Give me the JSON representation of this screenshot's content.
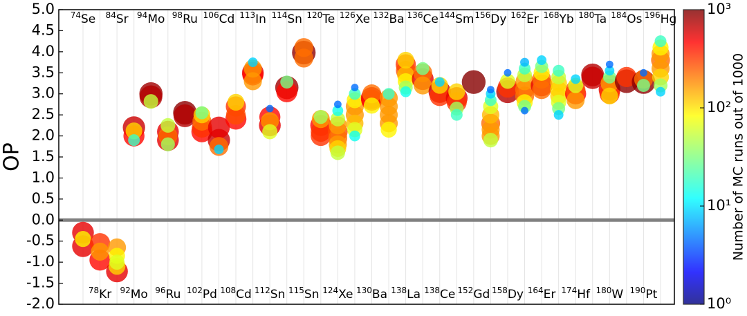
{
  "chart_data": {
    "type": "bubble",
    "ylabel": "OP",
    "ylim": [
      -2.0,
      5.0
    ],
    "yticks": [
      {
        "value": -2,
        "label": "-2.0"
      },
      -1.5,
      {
        "value": -1,
        "label": "-1.0"
      },
      -0.5,
      {
        "value": 0,
        "label": "0.0"
      },
      0.5,
      {
        "value": 1,
        "label": "1.0"
      },
      1.5,
      {
        "value": 2,
        "label": "2.0"
      },
      2.5,
      {
        "value": 3,
        "label": "3.0"
      },
      3.5,
      {
        "value": 4,
        "label": "4.0"
      },
      4.5,
      {
        "value": 5,
        "label": "5.0"
      }
    ],
    "zero_line": true,
    "colorbar": {
      "label": "Number of MC runs out of 1000",
      "log": true,
      "clim": [
        1,
        1000
      ],
      "colormap": "jet",
      "ticks": [
        {
          "value": 1,
          "label": "10⁰"
        },
        {
          "value": 10,
          "label": "10¹"
        },
        {
          "value": 100,
          "label": "10²"
        },
        {
          "value": 1000,
          "label": "10³"
        }
      ]
    },
    "isotopes": [
      {
        "mass": "74",
        "element": "Se",
        "points": [
          [
            -0.3,
            500
          ],
          [
            -0.62,
            500
          ],
          [
            -0.45,
            80
          ]
        ]
      },
      {
        "mass": "78",
        "element": "Kr",
        "points": [
          [
            -0.95,
            400
          ],
          [
            -0.55,
            300
          ],
          [
            -0.75,
            150
          ]
        ]
      },
      {
        "mass": "84",
        "element": "Sr",
        "points": [
          [
            -1.22,
            500
          ],
          [
            -0.65,
            150
          ],
          [
            -1.1,
            100
          ],
          [
            -0.85,
            80
          ],
          [
            -1.0,
            60
          ]
        ]
      },
      {
        "mass": "92",
        "element": "Mo",
        "points": [
          [
            2.2,
            600
          ],
          [
            2.0,
            400
          ],
          [
            2.12,
            100
          ],
          [
            1.9,
            20
          ]
        ]
      },
      {
        "mass": "94",
        "element": "Mo",
        "points": [
          [
            3.0,
            800
          ],
          [
            2.93,
            700
          ],
          [
            2.82,
            50
          ]
        ]
      },
      {
        "mass": "96",
        "element": "Ru",
        "points": [
          [
            2.1,
            500
          ],
          [
            1.9,
            500
          ],
          [
            2.0,
            200
          ],
          [
            2.25,
            50
          ],
          [
            1.8,
            40
          ]
        ]
      },
      {
        "mass": "98",
        "element": "Ru",
        "points": [
          [
            2.55,
            900
          ],
          [
            2.48,
            700
          ]
        ]
      },
      {
        "mass": "102",
        "element": "Pd",
        "points": [
          [
            2.1,
            400
          ],
          [
            2.2,
            300
          ],
          [
            2.35,
            200
          ],
          [
            2.5,
            100
          ],
          [
            2.55,
            30
          ]
        ]
      },
      {
        "mass": "106",
        "element": "Cd",
        "points": [
          [
            1.9,
            600
          ],
          [
            2.2,
            500
          ],
          [
            1.75,
            200
          ],
          [
            1.68,
            10
          ]
        ]
      },
      {
        "mass": "108",
        "element": "Cd",
        "points": [
          [
            2.4,
            400
          ],
          [
            2.7,
            300
          ],
          [
            2.5,
            250
          ],
          [
            2.8,
            100
          ]
        ]
      },
      {
        "mass": "113",
        "element": "In",
        "points": [
          [
            3.5,
            500
          ],
          [
            3.45,
            400
          ],
          [
            3.6,
            150
          ],
          [
            3.3,
            150
          ],
          [
            3.75,
            10
          ]
        ]
      },
      {
        "mass": "112",
        "element": "Sn",
        "points": [
          [
            2.25,
            500
          ],
          [
            2.45,
            400
          ],
          [
            2.35,
            150
          ],
          [
            2.1,
            60
          ],
          [
            2.65,
            5
          ]
        ]
      },
      {
        "mass": "114",
        "element": "Sn",
        "points": [
          [
            3.15,
            800
          ],
          [
            3.05,
            400
          ],
          [
            3.28,
            30
          ]
        ]
      },
      {
        "mass": "115",
        "element": "Sn",
        "points": [
          [
            3.98,
            900
          ],
          [
            4.1,
            200
          ],
          [
            3.85,
            200
          ]
        ]
      },
      {
        "mass": "120",
        "element": "Te",
        "points": [
          [
            2.25,
            400
          ],
          [
            2.1,
            300
          ],
          [
            2.0,
            300
          ],
          [
            2.4,
            150
          ],
          [
            2.45,
            40
          ]
        ]
      },
      {
        "mass": "124",
        "element": "Xe",
        "points": [
          [
            2.1,
            250
          ],
          [
            1.95,
            200
          ],
          [
            1.8,
            150
          ],
          [
            2.25,
            150
          ],
          [
            1.7,
            100
          ],
          [
            1.6,
            50
          ],
          [
            2.4,
            50
          ],
          [
            2.6,
            15
          ],
          [
            2.75,
            5
          ]
        ]
      },
      {
        "mass": "126",
        "element": "Xe",
        "points": [
          [
            2.7,
            150
          ],
          [
            2.5,
            150
          ],
          [
            2.3,
            120
          ],
          [
            2.85,
            80
          ],
          [
            2.15,
            60
          ],
          [
            3.0,
            20
          ],
          [
            2.0,
            15
          ],
          [
            3.15,
            5
          ]
        ]
      },
      {
        "mass": "130",
        "element": "Ba",
        "points": [
          [
            2.9,
            500
          ],
          [
            2.85,
            400
          ],
          [
            3.0,
            200
          ],
          [
            2.72,
            80
          ]
        ]
      },
      {
        "mass": "132",
        "element": "Ba",
        "points": [
          [
            2.9,
            150
          ],
          [
            2.7,
            150
          ],
          [
            2.5,
            150
          ],
          [
            2.3,
            150
          ],
          [
            2.15,
            80
          ],
          [
            3.0,
            20
          ]
        ]
      },
      {
        "mass": "138",
        "element": "La",
        "points": [
          [
            3.7,
            300
          ],
          [
            3.55,
            250
          ],
          [
            3.45,
            120
          ],
          [
            3.8,
            100
          ],
          [
            3.3,
            80
          ],
          [
            3.15,
            40
          ],
          [
            3.05,
            15
          ]
        ]
      },
      {
        "mass": "136",
        "element": "Ce",
        "points": [
          [
            3.35,
            500
          ],
          [
            3.5,
            200
          ],
          [
            3.2,
            150
          ],
          [
            3.6,
            30
          ]
        ]
      },
      {
        "mass": "138",
        "element": "Ce",
        "points": [
          [
            3.05,
            600
          ],
          [
            2.95,
            300
          ],
          [
            3.2,
            100
          ],
          [
            3.28,
            10
          ]
        ]
      },
      {
        "mass": "144",
        "element": "Sm",
        "points": [
          [
            2.9,
            500
          ],
          [
            2.8,
            300
          ],
          [
            3.05,
            100
          ],
          [
            2.65,
            40
          ],
          [
            2.5,
            20
          ]
        ]
      },
      {
        "mass": "152",
        "element": "Gd",
        "points": [
          [
            3.28,
            950
          ]
        ]
      },
      {
        "mass": "156",
        "element": "Dy",
        "points": [
          [
            2.3,
            200
          ],
          [
            2.15,
            150
          ],
          [
            2.0,
            150
          ],
          [
            2.5,
            120
          ],
          [
            2.7,
            60
          ],
          [
            1.9,
            50
          ],
          [
            2.85,
            20
          ],
          [
            3.0,
            10
          ],
          [
            3.1,
            5
          ]
        ]
      },
      {
        "mass": "158",
        "element": "Dy",
        "points": [
          [
            3.05,
            700
          ],
          [
            3.15,
            300
          ],
          [
            3.3,
            60
          ],
          [
            3.5,
            5
          ]
        ]
      },
      {
        "mass": "162",
        "element": "Er",
        "points": [
          [
            3.1,
            200
          ],
          [
            2.95,
            200
          ],
          [
            3.3,
            150
          ],
          [
            2.8,
            80
          ],
          [
            3.45,
            50
          ],
          [
            2.7,
            30
          ],
          [
            3.6,
            20
          ],
          [
            3.75,
            8
          ],
          [
            2.6,
            5
          ]
        ]
      },
      {
        "mass": "164",
        "element": "Er",
        "points": [
          [
            3.2,
            500
          ],
          [
            3.35,
            200
          ],
          [
            3.1,
            200
          ],
          [
            3.5,
            80
          ],
          [
            3.65,
            30
          ],
          [
            3.8,
            10
          ]
        ]
      },
      {
        "mass": "168",
        "element": "Yb",
        "points": [
          [
            3.1,
            100
          ],
          [
            2.95,
            100
          ],
          [
            3.25,
            100
          ],
          [
            2.8,
            60
          ],
          [
            3.4,
            50
          ],
          [
            2.65,
            30
          ],
          [
            3.55,
            20
          ],
          [
            2.5,
            10
          ]
        ]
      },
      {
        "mass": "174",
        "element": "Hf",
        "points": [
          [
            3.0,
            400
          ],
          [
            3.1,
            250
          ],
          [
            2.85,
            150
          ],
          [
            3.2,
            60
          ],
          [
            3.35,
            10
          ]
        ]
      },
      {
        "mass": "180",
        "element": "Ta",
        "points": [
          [
            3.45,
            700
          ],
          [
            3.38,
            600
          ]
        ]
      },
      {
        "mass": "180",
        "element": "W",
        "points": [
          [
            3.1,
            500
          ],
          [
            3.0,
            300
          ],
          [
            3.25,
            150
          ],
          [
            2.95,
            100
          ],
          [
            3.4,
            30
          ],
          [
            3.55,
            10
          ],
          [
            3.7,
            5
          ]
        ]
      },
      {
        "mass": "184",
        "element": "Os",
        "points": [
          [
            3.3,
            900
          ],
          [
            3.4,
            300
          ]
        ]
      },
      {
        "mass": "190",
        "element": "Pt",
        "points": [
          [
            3.28,
            900
          ],
          [
            3.35,
            200
          ],
          [
            3.2,
            30
          ],
          [
            3.5,
            5
          ]
        ]
      },
      {
        "mass": "196",
        "element": "Hg",
        "points": [
          [
            3.8,
            200
          ],
          [
            3.6,
            150
          ],
          [
            3.95,
            150
          ],
          [
            3.4,
            100
          ],
          [
            4.1,
            80
          ],
          [
            3.2,
            40
          ],
          [
            4.25,
            20
          ],
          [
            3.05,
            10
          ]
        ]
      }
    ]
  }
}
